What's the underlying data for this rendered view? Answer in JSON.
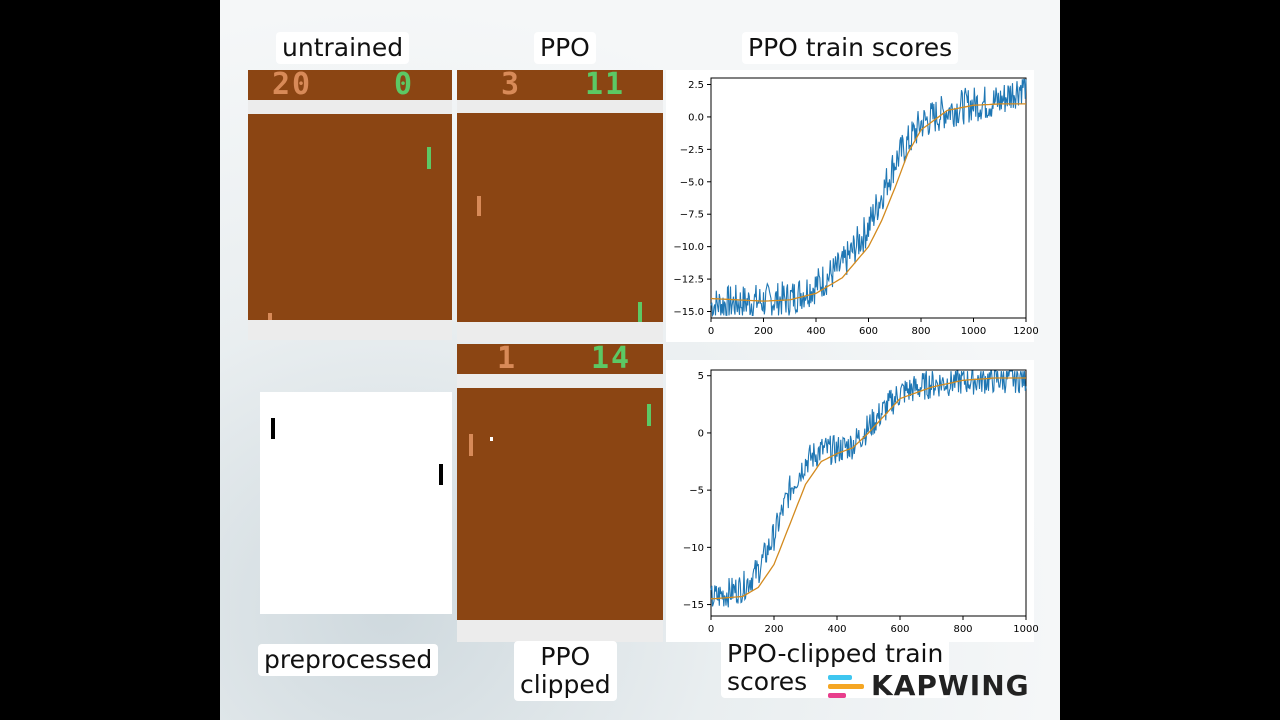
{
  "labels": {
    "untrained": "untrained",
    "ppo": "PPO",
    "ppo_train_scores": "PPO train scores",
    "preprocessed": "preprocessed",
    "ppo_clipped_line1": "PPO",
    "ppo_clipped_line2": "clipped",
    "ppo_clipped_scores_line1": "PPO-clipped train",
    "ppo_clipped_scores_line2": "scores"
  },
  "games": {
    "untrained": {
      "left_score": "20",
      "right_score": "0"
    },
    "ppo": {
      "left_score": "3",
      "right_score": "11"
    },
    "ppo_clipped": {
      "left_score": "1",
      "right_score": "14"
    }
  },
  "colors": {
    "court": "#8b4513",
    "left_player": "#d88a58",
    "right_player": "#5cc864",
    "raw_series": "#1f77b4",
    "smoothed_series": "#d38a1e"
  },
  "watermark": {
    "text": "KAPWING"
  },
  "chart_data": [
    {
      "type": "line",
      "title": "",
      "xlabel": "",
      "ylabel": "",
      "xlim": [
        0,
        1200
      ],
      "ylim": [
        -15.5,
        3
      ],
      "xticks": [
        0,
        200,
        400,
        600,
        800,
        1000,
        1200
      ],
      "yticks": [
        2.5,
        0.0,
        -2.5,
        -5.0,
        -7.5,
        -10.0,
        -12.5,
        -15.0
      ],
      "ytick_labels": [
        "2.5",
        "0.0",
        "−2.5",
        "−5.0",
        "−7.5",
        "−10.0",
        "−12.5",
        "−15.0"
      ],
      "series": [
        {
          "values_x": [
            0,
            100,
            200,
            300,
            400,
            500,
            600,
            700,
            800,
            900,
            1000,
            1100,
            1200
          ],
          "values_y": [
            -14.5,
            -14.3,
            -14.2,
            -14.0,
            -13.0,
            -11.5,
            -8.5,
            -3.5,
            -0.5,
            0.5,
            1.0,
            1.2,
            2.6
          ],
          "noise": 1.4
        },
        {
          "values_x": [
            0,
            100,
            200,
            300,
            400,
            500,
            600,
            650,
            700,
            750,
            800,
            900,
            1000,
            1100,
            1200
          ],
          "values_y": [
            -14.0,
            -14.1,
            -14.2,
            -14.1,
            -13.6,
            -12.4,
            -10.0,
            -8.0,
            -5.5,
            -2.8,
            -1.0,
            0.5,
            0.9,
            1.0,
            1.0
          ]
        }
      ]
    },
    {
      "type": "line",
      "title": "",
      "xlabel": "",
      "ylabel": "",
      "xlim": [
        0,
        1000
      ],
      "ylim": [
        -16,
        5.5
      ],
      "xticks": [
        0,
        200,
        400,
        600,
        800,
        1000
      ],
      "yticks": [
        5,
        0,
        -5,
        -10,
        -15
      ],
      "ytick_labels": [
        "5",
        "0",
        "−5",
        "−10",
        "−15"
      ],
      "series": [
        {
          "values_x": [
            0,
            100,
            150,
            200,
            250,
            300,
            350,
            400,
            450,
            500,
            550,
            600,
            700,
            800,
            900,
            1000
          ],
          "values_y": [
            -14.5,
            -13.5,
            -12.0,
            -9.0,
            -5.0,
            -2.5,
            -1.5,
            -1.5,
            -1.0,
            0.5,
            2.0,
            3.5,
            4.3,
            4.6,
            4.7,
            4.8
          ],
          "noise": 1.3
        },
        {
          "values_x": [
            0,
            100,
            150,
            200,
            250,
            300,
            350,
            400,
            450,
            500,
            550,
            600,
            700,
            800,
            900,
            1000
          ],
          "values_y": [
            -14.5,
            -14.3,
            -13.5,
            -11.5,
            -8.0,
            -4.5,
            -2.5,
            -1.8,
            -1.3,
            0.0,
            1.5,
            3.0,
            4.0,
            4.6,
            4.8,
            4.8
          ]
        }
      ]
    }
  ]
}
